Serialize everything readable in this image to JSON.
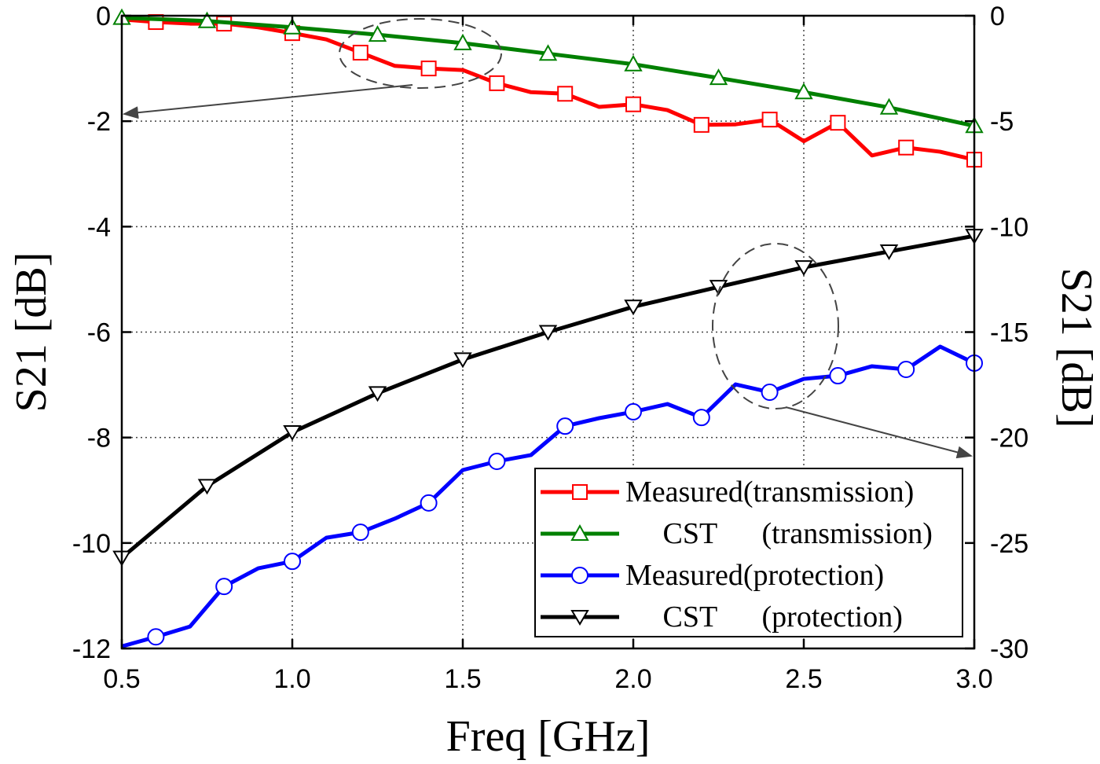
{
  "chart_data": {
    "type": "line",
    "xlabel": "Freq [GHz]",
    "ylabel": "S21 [dB]",
    "y2label": "S21 [dB]",
    "xlim": [
      0.5,
      3.0
    ],
    "ylim": [
      -12,
      0
    ],
    "y2lim": [
      -30,
      0
    ],
    "xticks": [
      "0.5",
      "1.0",
      "1.5",
      "2.0",
      "2.5",
      "3.0"
    ],
    "yticks": [
      "0",
      "-2",
      "-4",
      "-6",
      "-8",
      "-10",
      "-12"
    ],
    "y2ticks": [
      "0",
      "-5",
      "-10",
      "-15",
      "-20",
      "-25",
      "-30"
    ],
    "grid": true,
    "legend_position": "bottom-right",
    "series": [
      {
        "name": "Measured(transmission)",
        "legend_label": "Measured(transmission)",
        "axis": "left",
        "color": "#ff0000",
        "marker": "square",
        "x": [
          0.5,
          0.6,
          0.7,
          0.8,
          0.9,
          1.0,
          1.1,
          1.2,
          1.3,
          1.4,
          1.5,
          1.6,
          1.7,
          1.8,
          1.9,
          2.0,
          2.1,
          2.2,
          2.3,
          2.4,
          2.5,
          2.6,
          2.7,
          2.8,
          2.9,
          3.0
        ],
        "y": [
          -0.07,
          -0.12,
          -0.15,
          -0.15,
          -0.22,
          -0.33,
          -0.45,
          -0.7,
          -0.95,
          -1.0,
          -1.03,
          -1.28,
          -1.45,
          -1.48,
          -1.73,
          -1.68,
          -1.79,
          -2.07,
          -2.06,
          -1.97,
          -2.38,
          -2.03,
          -2.65,
          -2.5,
          -2.58,
          -2.73
        ],
        "marker_x": [
          0.6,
          0.8,
          1.0,
          1.2,
          1.4,
          1.6,
          1.8,
          2.0,
          2.2,
          2.4,
          2.6,
          2.8,
          3.0
        ]
      },
      {
        "name": "CST (transmission)",
        "legend_label": "     CST      (transmission)",
        "axis": "left",
        "color": "#008000",
        "marker": "triangle-up",
        "x": [
          0.5,
          0.75,
          1.0,
          1.25,
          1.5,
          1.75,
          2.0,
          2.25,
          2.5,
          2.75,
          3.0
        ],
        "y": [
          -0.04,
          -0.1,
          -0.22,
          -0.36,
          -0.52,
          -0.72,
          -0.92,
          -1.18,
          -1.45,
          -1.74,
          -2.09
        ]
      },
      {
        "name": "Measured(protection)",
        "legend_label": "Measured(protection)",
        "axis": "right",
        "color": "#0000ff",
        "marker": "circle",
        "x": [
          0.5,
          0.6,
          0.7,
          0.8,
          0.9,
          1.0,
          1.1,
          1.2,
          1.3,
          1.4,
          1.5,
          1.6,
          1.7,
          1.8,
          1.9,
          2.0,
          2.1,
          2.2,
          2.3,
          2.4,
          2.5,
          2.6,
          2.7,
          2.8,
          2.9,
          3.0
        ],
        "y": [
          -29.9,
          -29.45,
          -28.96,
          -27.06,
          -26.2,
          -25.87,
          -24.75,
          -24.49,
          -23.85,
          -23.1,
          -21.54,
          -21.13,
          -20.83,
          -19.46,
          -19.08,
          -18.78,
          -18.41,
          -19.05,
          -17.48,
          -17.85,
          -17.22,
          -17.07,
          -16.62,
          -16.77,
          -15.69,
          -16.47
        ],
        "marker_x": [
          0.6,
          0.8,
          1.0,
          1.2,
          1.4,
          1.6,
          1.8,
          2.0,
          2.2,
          2.4,
          2.6,
          2.8,
          3.0
        ]
      },
      {
        "name": "CST (protection)",
        "legend_label": "     CST      (protection)",
        "axis": "right",
        "color": "#000000",
        "marker": "triangle-down",
        "x": [
          0.5,
          0.75,
          1.0,
          1.25,
          1.5,
          1.75,
          2.0,
          2.25,
          2.5,
          2.75,
          3.0
        ],
        "y": [
          -25.7,
          -22.3,
          -19.75,
          -17.9,
          -16.3,
          -15.0,
          -13.8,
          -12.86,
          -11.93,
          -11.18,
          -10.44
        ]
      }
    ]
  }
}
